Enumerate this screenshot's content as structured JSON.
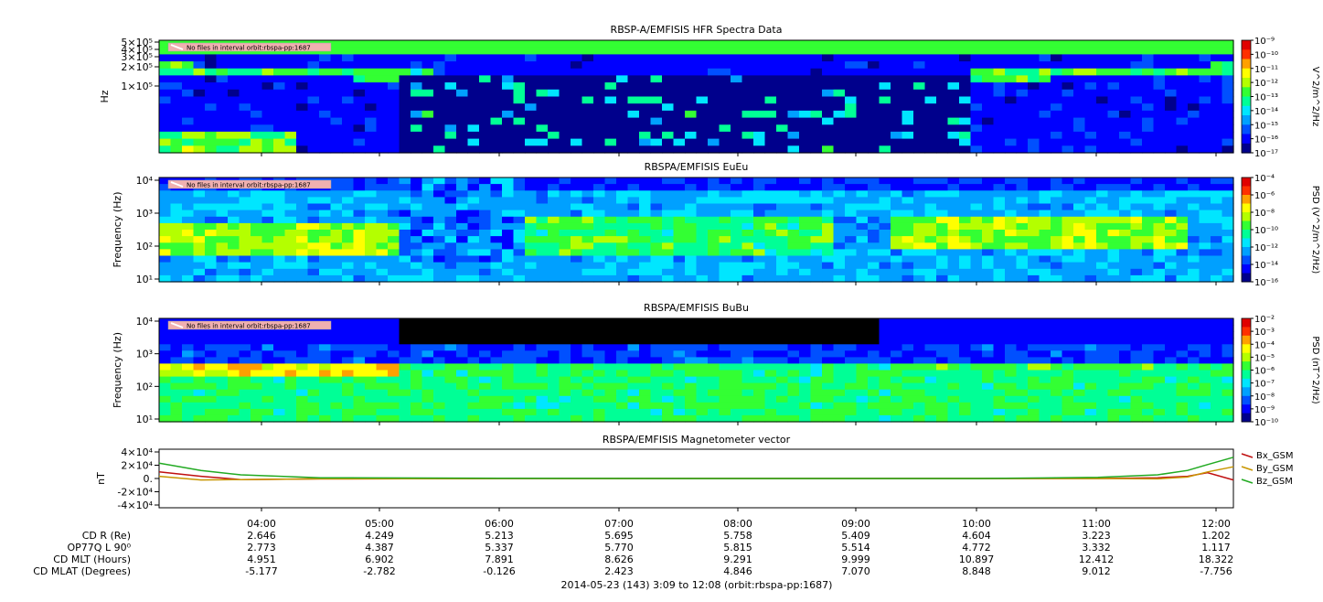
{
  "colors": {
    "colormap": [
      "#000000",
      "#00008c",
      "#0000ff",
      "#0050ff",
      "#00a0ff",
      "#00e6ff",
      "#00ff96",
      "#33ff33",
      "#b4ff00",
      "#ffff00",
      "#ffa000",
      "#ff3000",
      "#e00000"
    ],
    "bx": "#c01010",
    "by": "#c89600",
    "bz": "#22aa22",
    "annotation_bg": "#f0b0b0"
  },
  "panels": [
    {
      "title": "RBSP-A/EMFISIS  HFR Spectra Data",
      "annotation": "No files in interval orbit:rbspa-pp:1687",
      "ylabel": "Hz",
      "yticks": [
        "5×10⁵",
        "4×10⁵",
        "3×10⁵",
        "2×10⁵",
        "1×10⁵"
      ],
      "cbar_label": "V^2/m^2/Hz",
      "cbar_ticks": [
        "10⁻⁹",
        "10⁻¹⁰",
        "10⁻¹¹",
        "10⁻¹²",
        "10⁻¹³",
        "10⁻¹⁴",
        "10⁻¹⁵",
        "10⁻¹⁶",
        "10⁻¹⁷"
      ]
    },
    {
      "title": "RBSPA/EMFISIS  EuEu",
      "annotation": "No files in interval orbit:rbspa-pp:1687",
      "ylabel": "Frequency (Hz)",
      "yticks": [
        "10⁴",
        "10³",
        "10²",
        "10¹"
      ],
      "cbar_label": "PSD (V^2/m^2/Hz)",
      "cbar_ticks": [
        "10⁻⁴",
        "10⁻⁶",
        "10⁻⁸",
        "10⁻¹⁰",
        "10⁻¹²",
        "10⁻¹⁴",
        "10⁻¹⁶"
      ]
    },
    {
      "title": "RBSPA/EMFISIS  BuBu",
      "annotation": "No files in interval orbit:rbspa-pp:1687",
      "ylabel": "Frequency (Hz)",
      "yticks": [
        "10⁴",
        "10³",
        "10²",
        "10¹"
      ],
      "cbar_label": "PSD (nT^2/Hz)",
      "cbar_ticks": [
        "10⁻²",
        "10⁻³",
        "10⁻⁴",
        "10⁻⁵",
        "10⁻⁶",
        "10⁻⁷",
        "10⁻⁸",
        "10⁻⁹",
        "10⁻¹⁰"
      ]
    }
  ],
  "mag_panel": {
    "title": "RBSPA/EMFISIS  Magnetometer vector",
    "ylabel": "nT",
    "yticks": [
      "4×10⁴",
      "2×10⁴",
      "0.",
      "-2×10⁴",
      "-4×10⁴"
    ],
    "legend": [
      "Bx_GSM",
      "By_GSM",
      "Bz_GSM"
    ]
  },
  "ephemeris": {
    "labels": [
      "CD R (Re)",
      "OP77Q L 90⁰",
      "CD MLT (Hours)",
      "CD MLAT (Degrees)"
    ],
    "times": [
      "04:00",
      "05:00",
      "06:00",
      "07:00",
      "08:00",
      "09:00",
      "10:00",
      "11:00",
      "12:00"
    ],
    "rows": [
      [
        "2.646",
        "4.249",
        "5.213",
        "5.695",
        "5.758",
        "5.409",
        "4.604",
        "3.223",
        "1.202"
      ],
      [
        "2.773",
        "4.387",
        "5.337",
        "5.770",
        "5.815",
        "5.514",
        "4.772",
        "3.332",
        "1.117"
      ],
      [
        "4.951",
        "6.902",
        "7.891",
        "8.626",
        "9.291",
        "9.999",
        "10.897",
        "12.412",
        "18.322"
      ],
      [
        "-5.177",
        "-2.782",
        "-0.126",
        "2.423",
        "4.846",
        "7.070",
        "8.848",
        "9.012",
        "-7.756"
      ]
    ]
  },
  "footer": "2014-05-23 (143) 3:09 to 12:08 (orbit:rbspa-pp:1687)",
  "chart_data": [
    {
      "type": "heatmap",
      "title": "RBSP-A/EMFISIS  HFR Spectra Data",
      "ylabel": "Hz",
      "zlabel": "V^2/m^2/Hz",
      "zlim": [
        "1e-17",
        "1e-9"
      ],
      "x_range": [
        "03:09",
        "12:08"
      ],
      "x_ticks": [
        "04:00",
        "05:00",
        "06:00",
        "07:00",
        "08:00",
        "09:00",
        "10:00",
        "11:00",
        "12:00"
      ]
    },
    {
      "type": "heatmap",
      "title": "RBSPA/EMFISIS  EuEu",
      "ylabel": "Frequency (Hz)",
      "ylim": [
        10,
        10000
      ],
      "y_scale": "log",
      "zlabel": "PSD (V^2/m^2/Hz)",
      "zlim": [
        "1e-16",
        "1e-4"
      ]
    },
    {
      "type": "heatmap",
      "title": "RBSPA/EMFISIS  BuBu",
      "ylabel": "Frequency (Hz)",
      "ylim": [
        10,
        10000
      ],
      "y_scale": "log",
      "zlabel": "PSD (nT^2/Hz)",
      "zlim": [
        "1e-10",
        "1e-2"
      ]
    },
    {
      "type": "line",
      "title": "RBSPA/EMFISIS  Magnetometer vector",
      "ylabel": "nT",
      "ylim": [
        -40000,
        40000
      ],
      "x": [
        "03:09",
        "03:30",
        "03:50",
        "04:30",
        "06:00",
        "08:00",
        "10:00",
        "11:00",
        "11:30",
        "11:45",
        "11:55",
        "12:08"
      ],
      "series": [
        {
          "name": "Bx_GSM",
          "values": [
            9000,
            3000,
            -1500,
            -500,
            0,
            0,
            0,
            0,
            1000,
            3000,
            8000,
            -2000
          ]
        },
        {
          "name": "By_GSM",
          "values": [
            3000,
            -2000,
            -1500,
            -500,
            0,
            0,
            0,
            0,
            -500,
            2000,
            9000,
            16000
          ]
        },
        {
          "name": "Bz_GSM",
          "values": [
            21000,
            11000,
            5000,
            1000,
            200,
            0,
            0,
            1500,
            5000,
            11000,
            19000,
            29000
          ]
        }
      ]
    }
  ]
}
